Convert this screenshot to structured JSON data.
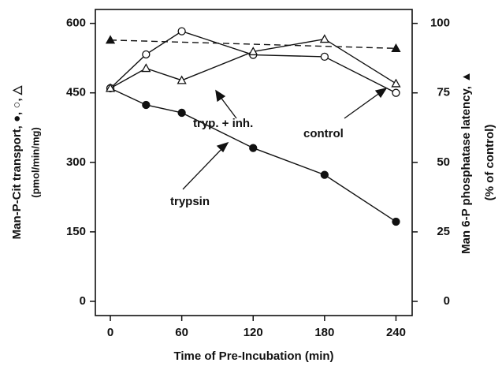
{
  "chart_data": {
    "type": "line",
    "x_label": "Time of Pre-Incubation (min)",
    "y_label": [
      "Man-P-Cit transport, ●, ○, △",
      "(pmol/min/mg)"
    ],
    "y2_label": [
      "Man 6-P phosphatase latency, ▲",
      "(% of control)"
    ],
    "xlim": [
      -12.6,
      253.6
    ],
    "xticks": [
      0,
      60,
      120,
      180,
      240
    ],
    "ylim": [
      -30.7,
      630
    ],
    "yticks": [
      0,
      150,
      300,
      450,
      600
    ],
    "y2lim": [
      -5.1,
      105
    ],
    "y2ticks": [
      0,
      25,
      50,
      75,
      100
    ],
    "series": [
      {
        "name": "trypsin",
        "color": "#111111",
        "marker": "filled-circle",
        "dash": false,
        "x": [
          0,
          30,
          60,
          120,
          180,
          240
        ],
        "values": [
          460,
          424,
          407,
          331,
          273,
          172
        ]
      },
      {
        "name": "control",
        "color": "#111111",
        "marker": "open-circle",
        "dash": false,
        "x": [
          0,
          30,
          60,
          120,
          180,
          240
        ],
        "values": [
          460,
          533,
          583,
          532,
          528,
          450
        ]
      },
      {
        "name": "tryp. + inh.",
        "color": "#111111",
        "marker": "open-triangle",
        "dash": false,
        "x": [
          0,
          30,
          60,
          120,
          180,
          240
        ],
        "values": [
          460,
          503,
          477,
          539,
          566,
          470
        ]
      },
      {
        "color": "#111111",
        "marker": "filled-triangle",
        "dash": true,
        "axis": "y2",
        "x": [
          0,
          240
        ],
        "values": [
          94,
          91
        ]
      }
    ]
  }
}
